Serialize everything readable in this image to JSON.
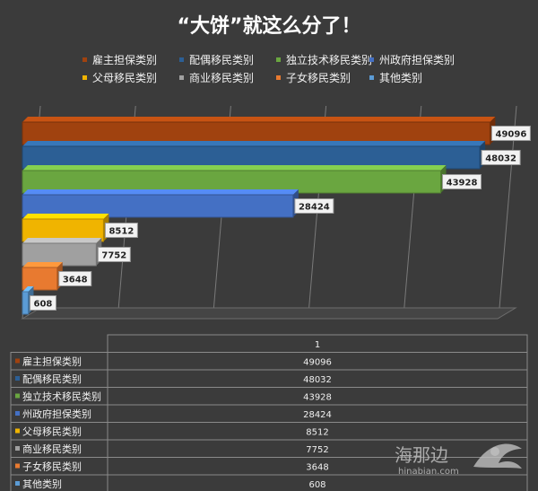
{
  "chart_data": {
    "type": "bar",
    "orientation": "horizontal",
    "title": "“大饼”就这么分了！",
    "categories": [
      "雇主担保类别",
      "配偶移民类别",
      "独立技术移民类别",
      "州政府担保类别",
      "父母移民类别",
      "商业移民类别",
      "子女移民类别",
      "其他类别"
    ],
    "values": [
      49096,
      48032,
      43928,
      28424,
      8512,
      7752,
      3648,
      608
    ],
    "colors": [
      "#a0420f",
      "#2c5f95",
      "#6aa640",
      "#4470c4",
      "#f0b400",
      "#a0a0a0",
      "#e87a30",
      "#5b9bd5"
    ],
    "xlim": [
      0,
      50000
    ],
    "grid": true,
    "legend_position": "top",
    "data_table": {
      "column_header": "1"
    }
  },
  "watermark": {
    "name": "海那边",
    "site": "hinabian.com"
  }
}
